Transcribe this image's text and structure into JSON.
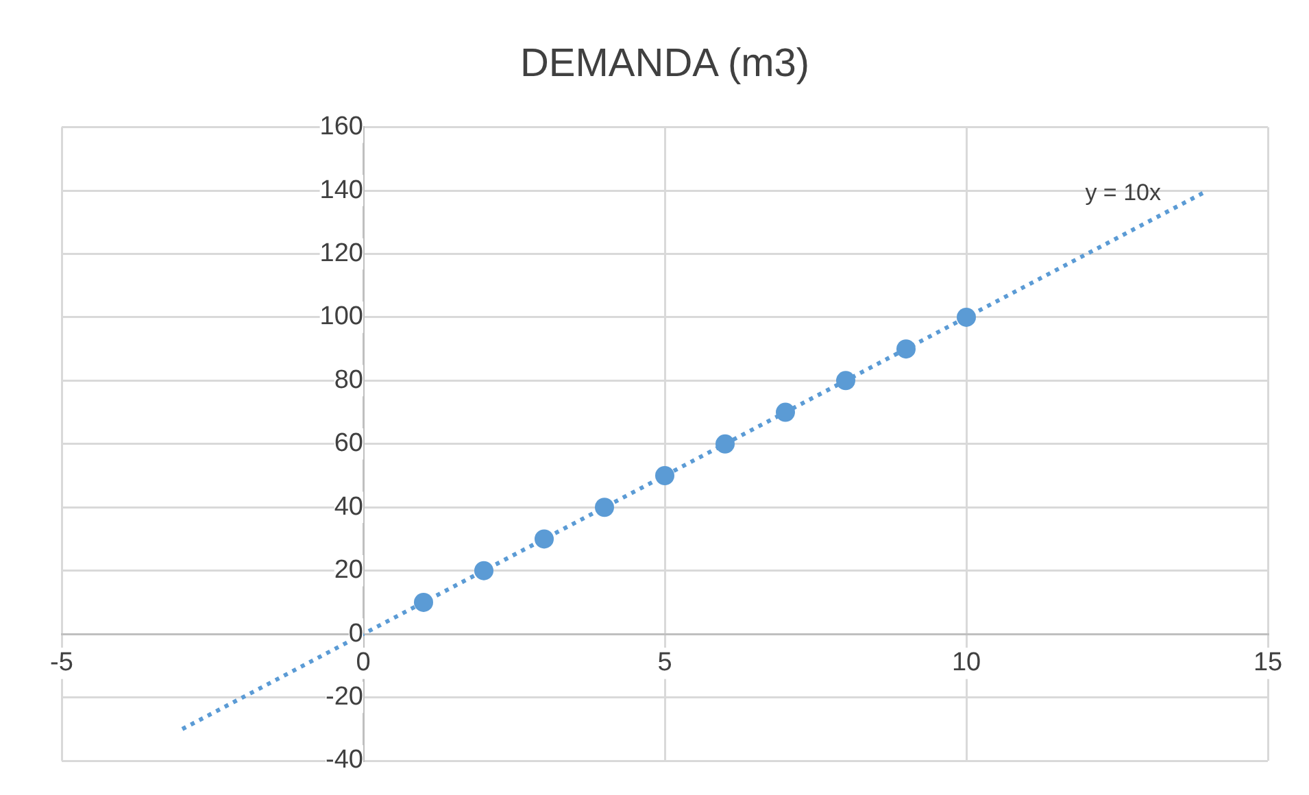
{
  "chart_data": {
    "type": "scatter",
    "title": "DEMANDA (m3)",
    "x": [
      1,
      2,
      3,
      4,
      5,
      6,
      7,
      8,
      9,
      10
    ],
    "series": [
      {
        "type": "scatter",
        "color": "#5b9bd5",
        "marker": "circle",
        "values": [
          10,
          20,
          30,
          40,
          50,
          60,
          70,
          80,
          90,
          100
        ]
      },
      {
        "type": "line",
        "color": "#5b9bd5",
        "marker": "none",
        "line_style": "dotted",
        "x": [
          -3,
          14
        ],
        "values": [
          -30,
          140
        ]
      }
    ],
    "annotations": [
      "y = 10x"
    ],
    "xlim": [
      -5,
      15
    ],
    "xticks": [
      -5,
      0,
      5,
      10,
      15
    ],
    "ylim": [
      -40,
      160
    ],
    "yticks": [
      -40,
      -20,
      0,
      20,
      40,
      60,
      80,
      100,
      120,
      140,
      160
    ],
    "grid": true,
    "legend": false
  }
}
